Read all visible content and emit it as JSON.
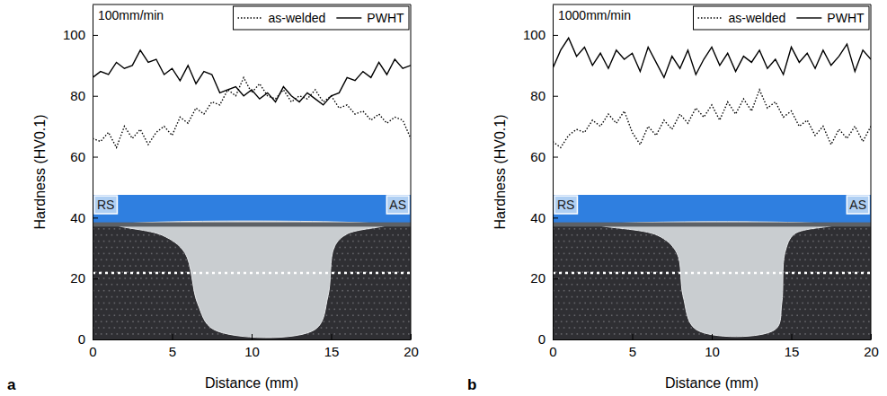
{
  "chart_data": [
    {
      "type": "line",
      "title": "100mm/min",
      "panel_label": "a",
      "x_label": "Distance (mm)",
      "y_label": "Hardness (HV0.1)",
      "annotations": [
        "RS",
        "AS"
      ],
      "legend": "top-right",
      "xlim": [
        0,
        20
      ],
      "ylim": [
        0,
        110
      ],
      "xticks": [
        0,
        5,
        10,
        15,
        20
      ],
      "yticks": [
        0,
        20,
        40,
        60,
        80,
        100
      ],
      "x": [
        0,
        0.5,
        1,
        1.5,
        2,
        2.5,
        3,
        3.5,
        4,
        4.5,
        5,
        5.5,
        6,
        6.5,
        7,
        7.5,
        8,
        8.5,
        9,
        9.5,
        10,
        10.5,
        11,
        11.5,
        12,
        12.5,
        13,
        13.5,
        14,
        14.5,
        15,
        15.5,
        16,
        16.5,
        17,
        17.5,
        18,
        18.5,
        19,
        19.5,
        20
      ],
      "series": [
        {
          "name": "as-welded",
          "color": "#000000",
          "line_style": "dotted",
          "values": [
            66,
            65,
            68,
            63,
            70,
            66,
            69,
            64,
            68,
            70,
            67,
            73,
            71,
            76,
            74,
            78,
            77,
            82,
            80,
            86,
            81,
            84,
            80,
            79,
            82,
            78,
            80,
            79,
            82,
            78,
            80,
            76,
            77,
            74,
            75,
            72,
            74,
            71,
            73,
            72,
            66
          ]
        },
        {
          "name": "PWHT",
          "color": "#000000",
          "line_style": "solid",
          "values": [
            86,
            88,
            87,
            91,
            89,
            90,
            95,
            91,
            92,
            87,
            89,
            85,
            90,
            84,
            88,
            87,
            81,
            82,
            83,
            80,
            82,
            79,
            81,
            78,
            83,
            80,
            78,
            81,
            79,
            77,
            80,
            81,
            86,
            85,
            88,
            86,
            91,
            87,
            92,
            89,
            90
          ]
        }
      ]
    },
    {
      "type": "line",
      "title": "1000mm/min",
      "panel_label": "b",
      "x_label": "Distance (mm)",
      "y_label": "Hardness (HV0.1)",
      "annotations": [
        "RS",
        "AS"
      ],
      "legend": "top-right",
      "xlim": [
        0,
        20
      ],
      "ylim": [
        0,
        110
      ],
      "xticks": [
        0,
        5,
        10,
        15,
        20
      ],
      "yticks": [
        0,
        20,
        40,
        60,
        80,
        100
      ],
      "x": [
        0,
        0.5,
        1,
        1.5,
        2,
        2.5,
        3,
        3.5,
        4,
        4.5,
        5,
        5.5,
        6,
        6.5,
        7,
        7.5,
        8,
        8.5,
        9,
        9.5,
        10,
        10.5,
        11,
        11.5,
        12,
        12.5,
        13,
        13.5,
        14,
        14.5,
        15,
        15.5,
        16,
        16.5,
        17,
        17.5,
        18,
        18.5,
        19,
        19.5,
        20
      ],
      "series": [
        {
          "name": "as-welded",
          "color": "#000000",
          "line_style": "dotted",
          "values": [
            65,
            63,
            67,
            69,
            68,
            72,
            70,
            74,
            71,
            75,
            68,
            64,
            70,
            67,
            72,
            69,
            74,
            71,
            76,
            73,
            77,
            72,
            78,
            74,
            79,
            75,
            82,
            76,
            78,
            73,
            75,
            70,
            72,
            67,
            70,
            64,
            69,
            66,
            70,
            65,
            70
          ]
        },
        {
          "name": "PWHT",
          "color": "#000000",
          "line_style": "solid",
          "values": [
            89,
            95,
            99,
            93,
            96,
            90,
            94,
            89,
            95,
            92,
            94,
            88,
            96,
            91,
            86,
            93,
            89,
            95,
            87,
            92,
            96,
            90,
            94,
            88,
            93,
            91,
            95,
            89,
            92,
            87,
            96,
            91,
            94,
            89,
            95,
            90,
            93,
            97,
            88,
            95,
            92
          ]
        }
      ]
    }
  ]
}
